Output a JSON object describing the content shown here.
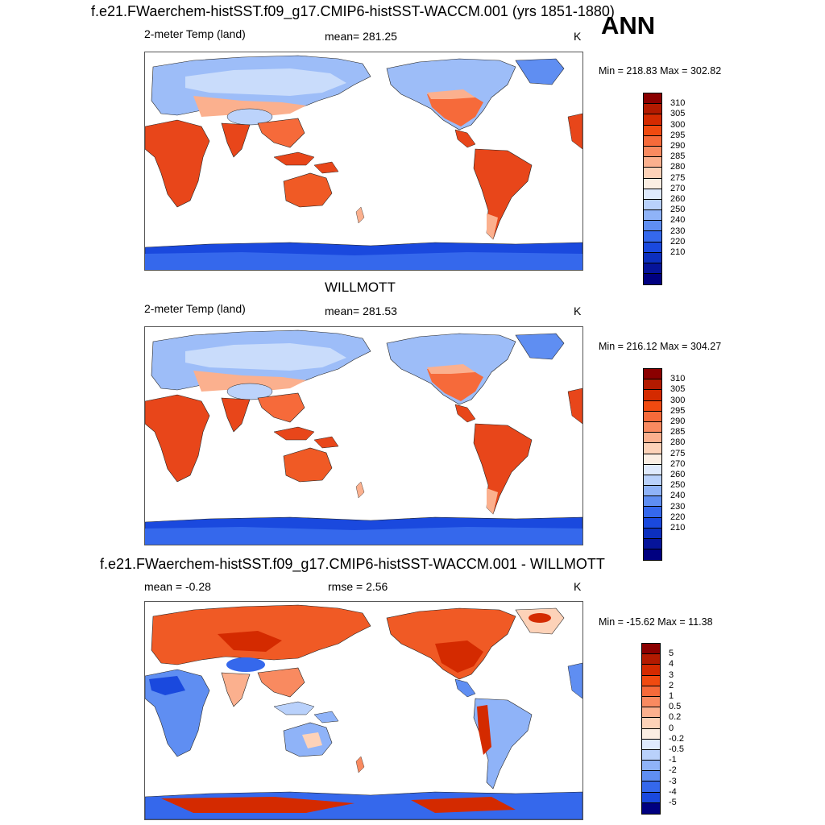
{
  "season": "ANN",
  "panels": [
    {
      "id": "model",
      "title": "f.e21.FWaerchem-histSST.f09_g17.CMIP6-histSST-WACCM.001 (yrs 1851-1880)",
      "left_label": "2-meter Temp (land)",
      "center_label": "mean= 281.25",
      "right_label": "K",
      "minmax": "Min = 218.83 Max = 302.82",
      "colorbar": {
        "labels": [
          "310",
          "305",
          "300",
          "295",
          "290",
          "285",
          "280",
          "275",
          "270",
          "260",
          "250",
          "240",
          "230",
          "220",
          "210"
        ],
        "colors": [
          "#8b0000",
          "#b31a00",
          "#d42a00",
          "#f04a10",
          "#f66a3a",
          "#f98a60",
          "#fbb08e",
          "#fdd2b8",
          "#fbeee3",
          "#dfeafd",
          "#b9d1fb",
          "#8fb3f8",
          "#5f8ef2",
          "#3568ec",
          "#1a49de",
          "#0c2fbe",
          "#06149a",
          "#000080"
        ]
      },
      "legend_items": []
    },
    {
      "id": "obs",
      "title": "WILLMOTT",
      "left_label": "2-meter Temp (land)",
      "center_label": "mean= 281.53",
      "right_label": "K",
      "minmax": "Min = 216.12 Max = 304.27",
      "colorbar": {
        "labels": [
          "310",
          "305",
          "300",
          "295",
          "290",
          "285",
          "280",
          "275",
          "270",
          "260",
          "250",
          "240",
          "230",
          "220",
          "210"
        ],
        "colors": [
          "#8b0000",
          "#b31a00",
          "#d42a00",
          "#f04a10",
          "#f66a3a",
          "#f98a60",
          "#fbb08e",
          "#fdd2b8",
          "#fbeee3",
          "#dfeafd",
          "#b9d1fb",
          "#8fb3f8",
          "#5f8ef2",
          "#3568ec",
          "#1a49de",
          "#0c2fbe",
          "#06149a",
          "#000080"
        ]
      }
    },
    {
      "id": "diff",
      "title": "f.e21.FWaerchem-histSST.f09_g17.CMIP6-histSST-WACCM.001 - WILLMOTT",
      "left_label": "mean =  -0.28",
      "center_label": "rmse =   2.56",
      "right_label": "K",
      "minmax": "Min = -15.62 Max =  11.38",
      "colorbar": {
        "labels": [
          "5",
          "4",
          "3",
          "2",
          "1",
          "0.5",
          "0.2",
          "0",
          "-0.2",
          "-0.5",
          "-1",
          "-2",
          "-3",
          "-4",
          "-5"
        ],
        "colors": [
          "#8b0000",
          "#b31a00",
          "#d42a00",
          "#f04a10",
          "#f66a3a",
          "#f98a60",
          "#fbb08e",
          "#fdd2b8",
          "#fbeee3",
          "#dfeafd",
          "#b9d1fb",
          "#8fb3f8",
          "#5f8ef2",
          "#3568ec",
          "#1a49de",
          "#000080"
        ]
      }
    }
  ]
}
